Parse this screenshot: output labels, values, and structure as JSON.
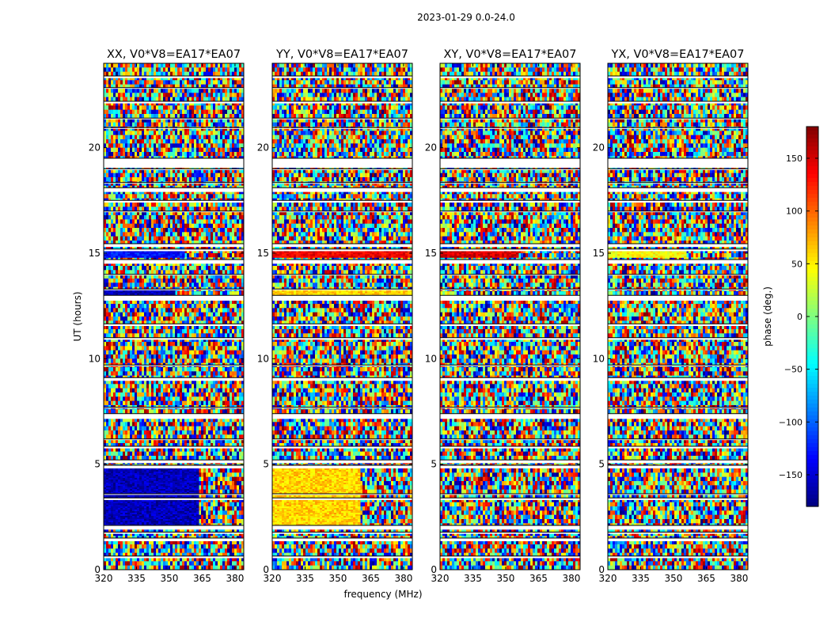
{
  "chart_data": {
    "type": "heatmap",
    "suptitle": "2023-01-29 0.0-24.0",
    "xlabel": "frequency (MHz)",
    "ylabel": "UT (hours)",
    "xticks": [
      320,
      335,
      350,
      365,
      380
    ],
    "yticks": [
      0,
      5,
      10,
      15,
      20
    ],
    "xlim": [
      320,
      384
    ],
    "ylim": [
      0,
      24
    ],
    "colorbar": {
      "label": "phase (deg.)",
      "range": [
        -180,
        180
      ],
      "ticks": [
        150,
        100,
        50,
        0,
        -50,
        -100,
        -150
      ],
      "tick_labels": [
        "150",
        "100",
        "50",
        "0",
        "−50",
        "−100",
        "−150"
      ],
      "colormap": "jet"
    },
    "flagged_hours": [
      [
        0.55,
        0.65
      ],
      [
        1.35,
        1.5
      ],
      [
        1.7,
        1.78
      ],
      [
        1.9,
        2.1
      ],
      [
        3.3,
        3.4
      ],
      [
        3.55,
        3.6
      ],
      [
        4.8,
        4.95
      ],
      [
        5.05,
        5.2
      ],
      [
        5.75,
        5.85
      ],
      [
        6.15,
        6.2
      ],
      [
        7.15,
        7.4
      ],
      [
        7.65,
        7.7
      ],
      [
        8.95,
        9.1
      ],
      [
        9.65,
        9.7
      ],
      [
        10.9,
        11.0
      ],
      [
        11.55,
        11.65
      ],
      [
        12.75,
        13.0
      ],
      [
        13.25,
        13.3
      ],
      [
        13.95,
        14.0
      ],
      [
        14.5,
        14.7
      ],
      [
        15.1,
        15.2
      ],
      [
        15.3,
        15.45
      ],
      [
        16.95,
        17.0
      ],
      [
        17.4,
        17.5
      ],
      [
        17.9,
        18.1
      ],
      [
        18.3,
        18.35
      ],
      [
        18.95,
        19.0
      ],
      [
        19.05,
        19.5
      ],
      [
        20.9,
        20.95
      ],
      [
        21.35,
        21.4
      ],
      [
        22.1,
        22.2
      ],
      [
        22.8,
        22.85
      ],
      [
        23.3,
        23.4
      ]
    ],
    "panels": [
      {
        "title": "XX, V0*V8=EA17*EA07",
        "coherent_regions": [
          {
            "hours": [
              2.1,
              4.8
            ],
            "freq": [
              320,
              363
            ],
            "phase_deg": -160
          },
          {
            "hours": [
              14.8,
              15.1
            ],
            "freq": [
              320,
              356
            ],
            "phase_deg": -130
          },
          {
            "hours": [
              13.0,
              13.25
            ],
            "freq": [
              320,
              352
            ],
            "phase_deg": -160
          }
        ]
      },
      {
        "title": "YY, V0*V8=EA17*EA07",
        "coherent_regions": [
          {
            "hours": [
              2.1,
              4.8
            ],
            "freq": [
              320,
              360
            ],
            "phase_deg": 60
          },
          {
            "hours": [
              14.8,
              15.1
            ],
            "freq": [
              320,
              384
            ],
            "phase_deg": 140
          },
          {
            "hours": [
              13.0,
              13.25
            ],
            "freq": [
              320,
              384
            ],
            "phase_deg": 60
          }
        ]
      },
      {
        "title": "XY, V0*V8=EA17*EA07",
        "coherent_regions": [
          {
            "hours": [
              14.8,
              15.1
            ],
            "freq": [
              320,
              355
            ],
            "phase_deg": 150
          }
        ]
      },
      {
        "title": "YX, V0*V8=EA17*EA07",
        "coherent_regions": [
          {
            "hours": [
              14.8,
              15.1
            ],
            "freq": [
              320,
              355
            ],
            "phase_deg": 45
          }
        ]
      }
    ]
  }
}
